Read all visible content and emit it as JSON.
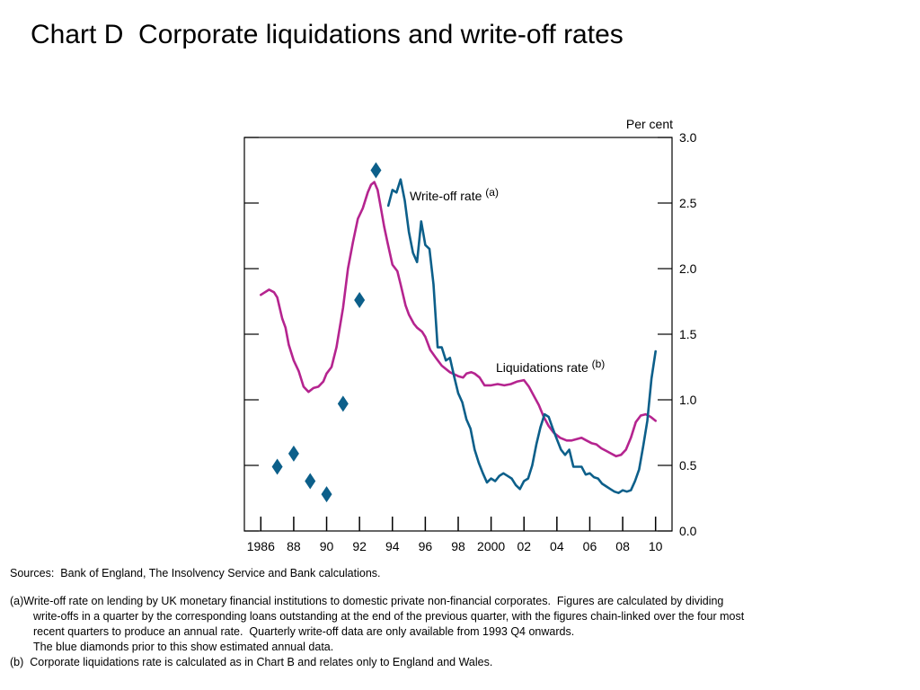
{
  "title": "Chart D  Corporate liquidations and write-off rates",
  "chart_data": {
    "type": "line",
    "unit_label": "Per cent",
    "ylim": [
      0,
      3.0
    ],
    "y_ticks": [
      "0.0",
      "0.5",
      "1.0",
      "1.5",
      "2.0",
      "2.5",
      "3.0"
    ],
    "xlim": [
      1985,
      2011
    ],
    "x_tick_labels": [
      "1986",
      "88",
      "90",
      "92",
      "94",
      "96",
      "98",
      "2000",
      "02",
      "04",
      "06",
      "08",
      "10"
    ],
    "grid": false,
    "series": [
      {
        "name": "Liquidations rate",
        "superscript": "(b)",
        "color": "#b5248f",
        "x": [
          1986.0,
          1986.5,
          1986.8,
          1987.0,
          1987.3,
          1987.5,
          1987.7,
          1988.0,
          1988.3,
          1988.6,
          1988.9,
          1989.2,
          1989.5,
          1989.8,
          1990.0,
          1990.3,
          1990.6,
          1991.0,
          1991.3,
          1991.6,
          1991.9,
          1992.2,
          1992.5,
          1992.7,
          1992.9,
          1993.1,
          1993.3,
          1993.5,
          1993.7,
          1994.0,
          1994.3,
          1994.5,
          1994.8,
          1995.0,
          1995.3,
          1995.5,
          1995.8,
          1996.0,
          1996.3,
          1996.7,
          1997.0,
          1997.5,
          1998.0,
          1998.3,
          1998.5,
          1998.8,
          1999.0,
          1999.3,
          1999.6,
          2000.0,
          2000.4,
          2000.8,
          2001.2,
          2001.6,
          2002.0,
          2002.3,
          2002.6,
          2002.9,
          2003.2,
          2003.5,
          2003.8,
          2004.2,
          2004.6,
          2004.9,
          2005.2,
          2005.5,
          2005.8,
          2006.1,
          2006.4,
          2006.7,
          2007.0,
          2007.3,
          2007.6,
          2007.9,
          2008.2,
          2008.5,
          2008.8,
          2009.1,
          2009.4,
          2009.7,
          2010.0
        ],
        "y": [
          1.8,
          1.84,
          1.82,
          1.78,
          1.62,
          1.55,
          1.42,
          1.3,
          1.22,
          1.1,
          1.06,
          1.09,
          1.1,
          1.14,
          1.2,
          1.25,
          1.4,
          1.7,
          2.0,
          2.2,
          2.38,
          2.46,
          2.58,
          2.64,
          2.66,
          2.6,
          2.46,
          2.32,
          2.2,
          2.03,
          1.98,
          1.88,
          1.72,
          1.65,
          1.58,
          1.55,
          1.52,
          1.48,
          1.38,
          1.31,
          1.26,
          1.21,
          1.18,
          1.17,
          1.2,
          1.21,
          1.2,
          1.17,
          1.11,
          1.11,
          1.12,
          1.11,
          1.12,
          1.14,
          1.15,
          1.1,
          1.03,
          0.96,
          0.87,
          0.8,
          0.75,
          0.71,
          0.69,
          0.69,
          0.7,
          0.71,
          0.69,
          0.67,
          0.66,
          0.63,
          0.61,
          0.59,
          0.57,
          0.58,
          0.62,
          0.71,
          0.83,
          0.88,
          0.89,
          0.87,
          0.84
        ]
      },
      {
        "name": "Write-off rate",
        "superscript": "(a)",
        "color": "#0c5f8a",
        "x": [
          1993.75,
          1994.0,
          1994.25,
          1994.5,
          1994.75,
          1995.0,
          1995.25,
          1995.5,
          1995.75,
          1996.0,
          1996.25,
          1996.5,
          1996.75,
          1997.0,
          1997.25,
          1997.5,
          1997.75,
          1998.0,
          1998.25,
          1998.5,
          1998.75,
          1999.0,
          1999.25,
          1999.5,
          1999.75,
          2000.0,
          2000.25,
          2000.5,
          2000.75,
          2001.0,
          2001.25,
          2001.5,
          2001.75,
          2002.0,
          2002.25,
          2002.5,
          2002.75,
          2003.0,
          2003.25,
          2003.5,
          2003.75,
          2004.0,
          2004.25,
          2004.5,
          2004.75,
          2005.0,
          2005.25,
          2005.5,
          2005.75,
          2006.0,
          2006.25,
          2006.5,
          2006.75,
          2007.0,
          2007.25,
          2007.5,
          2007.75,
          2008.0,
          2008.25,
          2008.5,
          2008.75,
          2009.0,
          2009.25,
          2009.5,
          2009.75,
          2010.0
        ],
        "y": [
          2.48,
          2.6,
          2.58,
          2.68,
          2.52,
          2.28,
          2.12,
          2.05,
          2.36,
          2.18,
          2.15,
          1.88,
          1.4,
          1.4,
          1.3,
          1.32,
          1.18,
          1.05,
          0.98,
          0.85,
          0.78,
          0.62,
          0.52,
          0.44,
          0.37,
          0.4,
          0.38,
          0.42,
          0.44,
          0.42,
          0.4,
          0.35,
          0.32,
          0.38,
          0.4,
          0.5,
          0.66,
          0.79,
          0.89,
          0.87,
          0.78,
          0.7,
          0.62,
          0.58,
          0.62,
          0.49,
          0.49,
          0.49,
          0.43,
          0.44,
          0.41,
          0.4,
          0.36,
          0.34,
          0.32,
          0.3,
          0.29,
          0.31,
          0.3,
          0.31,
          0.38,
          0.47,
          0.65,
          0.84,
          1.16,
          1.37
        ]
      },
      {
        "name": "",
        "marker": "diamond",
        "color": "#0c5f8a",
        "x": [
          1987.0,
          1988.0,
          1989.0,
          1990.0,
          1991.0,
          1992.0,
          1993.0
        ],
        "y": [
          0.49,
          0.59,
          0.38,
          0.28,
          0.97,
          1.76,
          2.75
        ]
      }
    ],
    "annotations": [
      {
        "text": "Write-off rate",
        "superscript": "(a)"
      },
      {
        "text": "Liquidations rate",
        "superscript": "(b)"
      }
    ]
  },
  "notes": {
    "sources": "Sources:  Bank of England, The Insolvency Service and Bank calculations.",
    "a_lines": [
      "(a)Write-off rate on lending by UK monetary financial institutions to domestic private non-financial corporates.  Figures are calculated by dividing",
      "write-offs in a quarter by the corresponding loans outstanding at the end of the previous quarter, with the figures chain-linked over the four most",
      "recent quarters to produce an annual rate.  Quarterly write-off data are only available from 1993 Q4 onwards.",
      "The blue diamonds prior to this show estimated annual data."
    ],
    "b_line": "(b)  Corporate liquidations rate is calculated as in Chart B and relates only to England and Wales."
  }
}
